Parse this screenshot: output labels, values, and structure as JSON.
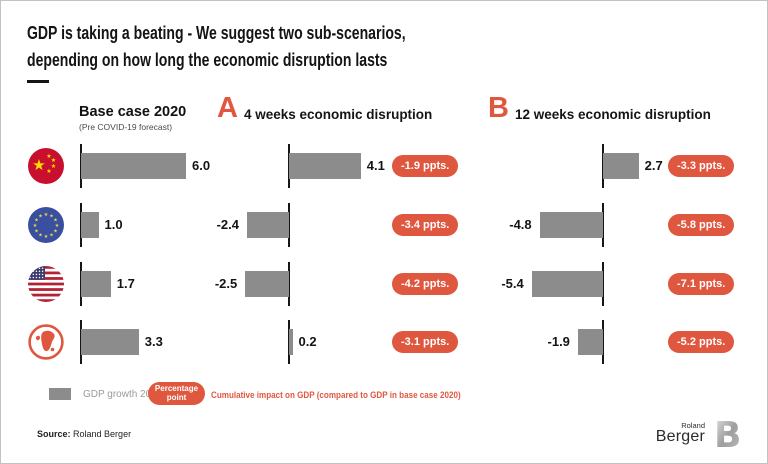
{
  "title": {
    "line1": "GDP is taking a beating - We suggest two sub-scenarios,",
    "line2": "depending on how long the economic disruption lasts"
  },
  "columns": {
    "base": {
      "label": "Base case 2020",
      "sublabel": "(Pre COVID-19 forecast)"
    },
    "a": {
      "letter": "A",
      "label": "4 weeks economic disruption"
    },
    "b": {
      "letter": "B",
      "label": "12 weeks economic disruption"
    }
  },
  "chart_data": {
    "type": "bar",
    "orientation": "horizontal",
    "title": "GDP is taking a beating - We suggest two sub-scenarios, depending on how long the economic disruption lasts",
    "unit": "GDP growth 2020 [%]",
    "column_labels": [
      "Base case 2020 (Pre COVID-19 forecast)",
      "4 weeks economic disruption",
      "12 weeks economic disruption"
    ],
    "rows": [
      {
        "region": "China",
        "flag": "china",
        "base": 6.0,
        "a": 4.1,
        "a_impact": "-1.9 ppts.",
        "b": 2.7,
        "b_impact": "-3.3 ppts."
      },
      {
        "region": "European Union",
        "flag": "eu",
        "base": 1.0,
        "a": -2.4,
        "a_impact": "-3.4 ppts.",
        "b": -4.8,
        "b_impact": "-5.8 ppts."
      },
      {
        "region": "United States",
        "flag": "usa",
        "base": 1.7,
        "a": -2.5,
        "a_impact": "-4.2 ppts.",
        "b": -5.4,
        "b_impact": "-7.1 ppts."
      },
      {
        "region": "World",
        "flag": "world",
        "base": 3.3,
        "a": 0.2,
        "a_impact": "-3.1 ppts.",
        "b": -1.9,
        "b_impact": "-5.2 ppts."
      }
    ]
  },
  "legend": {
    "bar_label": "GDP growth 2020 [%]",
    "badge_line1": "Percentage",
    "badge_line2": "point",
    "impact_label": "Cumulative impact on GDP (compared to GDP in base case 2020)"
  },
  "source": {
    "prefix": "Source:",
    "text": "Roland Berger"
  },
  "logo": {
    "line1": "Roland",
    "line2": "Berger",
    "monogram": "B"
  },
  "colors": {
    "accent": "#E0573F",
    "bar": "#8C8C8C"
  }
}
